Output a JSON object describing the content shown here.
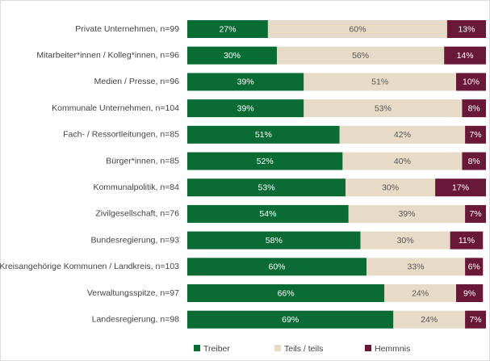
{
  "chart_data": {
    "type": "stacked-barh",
    "categories": [
      "Private Unternehmen, n=99",
      "Mitarbeiter*innen / Kolleg*innen, n=96",
      "Medien / Presse, n=96",
      "Kommunale Unternehmen, n=104",
      "Fach- / Ressortleitungen, n=85",
      "Bürger*innen, n=85",
      "Kommunalpolitik, n=84",
      "Zivilgesellschaft, n=76",
      "Bundesregierung, n=93",
      "Kreisangehörige Kommunen / Landkreis, n=103",
      "Verwaltungsspitze, n=97",
      "Landesregierung, n=98"
    ],
    "series": [
      {
        "name": "Treiber",
        "color": "#0b6b35",
        "text_color": "#ffffff",
        "values": [
          27,
          30,
          39,
          39,
          51,
          52,
          53,
          54,
          58,
          60,
          66,
          69
        ],
        "value_labels": [
          "27%",
          "30%",
          "39%",
          "39%",
          "51%",
          "52%",
          "53%",
          "54%",
          "58%",
          "60%",
          "66%",
          "69%"
        ]
      },
      {
        "name": "Teils / teils",
        "color": "#e7dbc8",
        "text_color": "#555555",
        "values": [
          60,
          56,
          51,
          53,
          42,
          40,
          30,
          39,
          30,
          33,
          24,
          24
        ],
        "value_labels": [
          "60%",
          "56%",
          "51%",
          "53%",
          "42%",
          "40%",
          "30%",
          "39%",
          "30%",
          "33%",
          "24%",
          "24%"
        ]
      },
      {
        "name": "Hemmnis",
        "color": "#6a1838",
        "text_color": "#ffffff",
        "values": [
          13,
          14,
          10,
          8,
          7,
          8,
          17,
          7,
          11,
          6,
          9,
          7
        ],
        "value_labels": [
          "13%",
          "14%",
          "10%",
          "8%",
          "7%",
          "8%",
          "17%",
          "7%",
          "11%",
          "6%",
          "9%",
          "7%"
        ]
      }
    ],
    "xlim": [
      0,
      100
    ]
  }
}
